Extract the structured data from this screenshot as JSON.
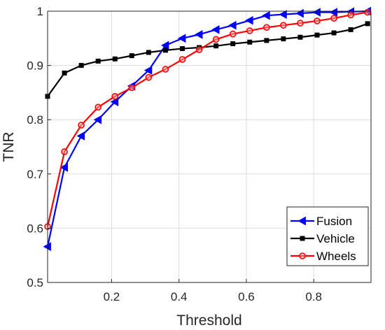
{
  "chart_data": {
    "type": "line",
    "title": "",
    "xlabel": "Threshold",
    "ylabel": "TNR",
    "xlim": [
      0.01,
      0.97
    ],
    "ylim": [
      0.5,
      1.0
    ],
    "xticks": [
      0.2,
      0.4,
      0.6,
      0.8
    ],
    "xtick_labels": [
      "0.2",
      "0.4",
      "0.6",
      "0.8"
    ],
    "yticks": [
      0.5,
      0.6,
      0.7,
      0.8,
      0.9,
      1.0
    ],
    "ytick_labels": [
      "0.5",
      "0.6",
      "0.7",
      "0.8",
      "0.9",
      "1"
    ],
    "grid": true,
    "legend_position": "bottom-right",
    "x": [
      0.01,
      0.06,
      0.11,
      0.16,
      0.21,
      0.26,
      0.31,
      0.36,
      0.41,
      0.46,
      0.51,
      0.56,
      0.61,
      0.66,
      0.71,
      0.76,
      0.81,
      0.86,
      0.91,
      0.96
    ],
    "series": [
      {
        "name": "Fusion",
        "color": "#0000ff",
        "marker": "triangle-left",
        "values": [
          0.566,
          0.712,
          0.77,
          0.8,
          0.833,
          0.862,
          0.891,
          0.937,
          0.95,
          0.957,
          0.966,
          0.974,
          0.983,
          0.992,
          0.994,
          0.996,
          0.998,
          0.998,
          0.999,
          1.0
        ]
      },
      {
        "name": "Vehicle",
        "color": "#000000",
        "marker": "square",
        "values": [
          0.843,
          0.886,
          0.9,
          0.908,
          0.912,
          0.918,
          0.924,
          0.928,
          0.931,
          0.933,
          0.936,
          0.94,
          0.943,
          0.946,
          0.949,
          0.952,
          0.956,
          0.96,
          0.966,
          0.977
        ]
      },
      {
        "name": "Wheels",
        "color": "#ff0000",
        "marker": "circle",
        "values": [
          0.603,
          0.741,
          0.79,
          0.823,
          0.843,
          0.859,
          0.878,
          0.893,
          0.911,
          0.929,
          0.948,
          0.958,
          0.964,
          0.97,
          0.974,
          0.978,
          0.982,
          0.987,
          0.993,
          0.998
        ]
      }
    ]
  }
}
